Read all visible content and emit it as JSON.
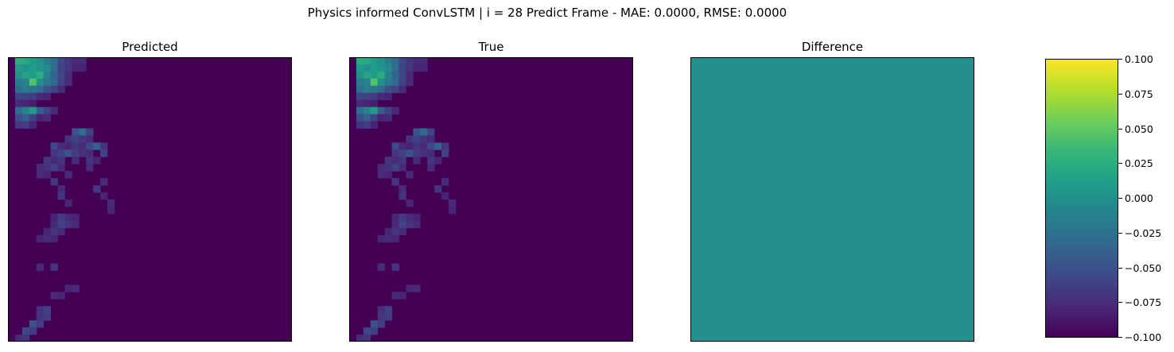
{
  "figure": {
    "title": "Physics informed ConvLSTM | i = 28 Predict Frame - MAE: 0.0000, RMSE: 0.0000"
  },
  "colormap": {
    "name": "viridis",
    "stops": [
      "#440154",
      "#482878",
      "#3e4989",
      "#31688e",
      "#26828e",
      "#1f9e89",
      "#35b779",
      "#6ece58",
      "#b5de2b",
      "#fde725"
    ]
  },
  "chart_data": [
    {
      "type": "heatmap",
      "title": "Predicted",
      "grid_size": [
        40,
        40
      ],
      "value_range": [
        0,
        1
      ],
      "cells": [
        [
          0,
          1,
          0.62
        ],
        [
          0,
          2,
          0.6
        ],
        [
          0,
          3,
          0.55
        ],
        [
          0,
          4,
          0.5
        ],
        [
          0,
          5,
          0.42
        ],
        [
          0,
          6,
          0.35
        ],
        [
          0,
          7,
          0.22
        ],
        [
          0,
          8,
          0.15
        ],
        [
          0,
          9,
          0.12
        ],
        [
          0,
          10,
          0.12
        ],
        [
          1,
          1,
          0.55
        ],
        [
          1,
          2,
          0.5
        ],
        [
          1,
          3,
          0.55
        ],
        [
          1,
          4,
          0.52
        ],
        [
          1,
          5,
          0.48
        ],
        [
          1,
          6,
          0.35
        ],
        [
          1,
          7,
          0.2
        ],
        [
          1,
          8,
          0.15
        ],
        [
          1,
          9,
          0.1
        ],
        [
          1,
          10,
          0.1
        ],
        [
          2,
          1,
          0.5
        ],
        [
          2,
          2,
          0.58
        ],
        [
          2,
          3,
          0.55
        ],
        [
          2,
          4,
          0.62
        ],
        [
          2,
          5,
          0.45
        ],
        [
          2,
          6,
          0.32
        ],
        [
          2,
          7,
          0.22
        ],
        [
          2,
          8,
          0.12
        ],
        [
          3,
          1,
          0.42
        ],
        [
          3,
          2,
          0.45
        ],
        [
          3,
          3,
          0.72
        ],
        [
          3,
          4,
          0.5
        ],
        [
          3,
          5,
          0.4
        ],
        [
          3,
          6,
          0.35
        ],
        [
          3,
          7,
          0.2
        ],
        [
          3,
          8,
          0.12
        ],
        [
          4,
          1,
          0.35
        ],
        [
          4,
          2,
          0.42
        ],
        [
          4,
          3,
          0.4
        ],
        [
          4,
          4,
          0.35
        ],
        [
          4,
          5,
          0.25
        ],
        [
          4,
          6,
          0.2
        ],
        [
          4,
          7,
          0.12
        ],
        [
          5,
          1,
          0.2
        ],
        [
          5,
          2,
          0.2
        ],
        [
          5,
          3,
          0.18
        ],
        [
          5,
          4,
          0.12
        ],
        [
          5,
          5,
          0.1
        ],
        [
          6,
          1,
          0.12
        ],
        [
          6,
          2,
          0.1
        ],
        [
          6,
          3,
          0.08
        ],
        [
          7,
          1,
          0.35
        ],
        [
          7,
          2,
          0.45
        ],
        [
          7,
          3,
          0.55
        ],
        [
          7,
          4,
          0.3
        ],
        [
          7,
          5,
          0.2
        ],
        [
          7,
          6,
          0.12
        ],
        [
          8,
          1,
          0.25
        ],
        [
          8,
          2,
          0.3
        ],
        [
          8,
          3,
          0.2
        ],
        [
          8,
          4,
          0.1
        ],
        [
          8,
          5,
          0.12
        ],
        [
          9,
          1,
          0.15
        ],
        [
          9,
          2,
          0.18
        ],
        [
          9,
          3,
          0.1
        ],
        [
          10,
          9,
          0.25
        ],
        [
          10,
          10,
          0.35
        ],
        [
          10,
          11,
          0.2
        ],
        [
          11,
          8,
          0.15
        ],
        [
          11,
          9,
          0.2
        ],
        [
          11,
          10,
          0.15
        ],
        [
          11,
          11,
          0.12
        ],
        [
          12,
          6,
          0.22
        ],
        [
          12,
          7,
          0.12
        ],
        [
          12,
          8,
          0.1
        ],
        [
          12,
          9,
          0.15
        ],
        [
          12,
          10,
          0.12
        ],
        [
          12,
          11,
          0.22
        ],
        [
          12,
          12,
          0.3
        ],
        [
          12,
          13,
          0.15
        ],
        [
          13,
          6,
          0.15
        ],
        [
          13,
          7,
          0.2
        ],
        [
          13,
          8,
          0.25
        ],
        [
          13,
          9,
          0.18
        ],
        [
          13,
          10,
          0.14
        ],
        [
          13,
          11,
          0.12
        ],
        [
          13,
          13,
          0.2
        ],
        [
          14,
          5,
          0.15
        ],
        [
          14,
          6,
          0.12
        ],
        [
          14,
          7,
          0.15
        ],
        [
          14,
          9,
          0.12
        ],
        [
          14,
          11,
          0.15
        ],
        [
          14,
          12,
          0.1
        ],
        [
          15,
          4,
          0.12
        ],
        [
          15,
          5,
          0.14
        ],
        [
          15,
          6,
          0.2
        ],
        [
          15,
          7,
          0.12
        ],
        [
          15,
          11,
          0.12
        ],
        [
          16,
          4,
          0.12
        ],
        [
          16,
          5,
          0.1
        ],
        [
          16,
          8,
          0.12
        ],
        [
          17,
          6,
          0.15
        ],
        [
          17,
          13,
          0.12
        ],
        [
          18,
          7,
          0.12
        ],
        [
          18,
          12,
          0.15
        ],
        [
          19,
          7,
          0.15
        ],
        [
          19,
          13,
          0.1
        ],
        [
          20,
          8,
          0.1
        ],
        [
          20,
          14,
          0.12
        ],
        [
          21,
          14,
          0.1
        ],
        [
          22,
          6,
          0.1
        ],
        [
          22,
          7,
          0.18
        ],
        [
          22,
          8,
          0.12
        ],
        [
          22,
          9,
          0.1
        ],
        [
          23,
          6,
          0.12
        ],
        [
          23,
          7,
          0.2
        ],
        [
          23,
          8,
          0.15
        ],
        [
          23,
          9,
          0.12
        ],
        [
          24,
          5,
          0.1
        ],
        [
          24,
          6,
          0.15
        ],
        [
          24,
          7,
          0.12
        ],
        [
          25,
          4,
          0.1
        ],
        [
          25,
          5,
          0.12
        ],
        [
          25,
          6,
          0.1
        ],
        [
          29,
          4,
          0.12
        ],
        [
          29,
          6,
          0.15
        ],
        [
          32,
          8,
          0.1
        ],
        [
          32,
          9,
          0.12
        ],
        [
          33,
          6,
          0.12
        ],
        [
          33,
          7,
          0.1
        ],
        [
          35,
          4,
          0.14
        ],
        [
          35,
          5,
          0.2
        ],
        [
          36,
          4,
          0.15
        ],
        [
          36,
          5,
          0.18
        ],
        [
          37,
          3,
          0.25
        ],
        [
          37,
          4,
          0.18
        ],
        [
          38,
          2,
          0.22
        ],
        [
          38,
          3,
          0.18
        ],
        [
          39,
          1,
          0.12
        ],
        [
          39,
          2,
          0.15
        ]
      ]
    },
    {
      "type": "heatmap",
      "title": "True",
      "grid_size": [
        40,
        40
      ],
      "value_range": [
        0,
        1
      ],
      "cells": [
        [
          0,
          1,
          0.62
        ],
        [
          0,
          2,
          0.6
        ],
        [
          0,
          3,
          0.55
        ],
        [
          0,
          4,
          0.5
        ],
        [
          0,
          5,
          0.42
        ],
        [
          0,
          6,
          0.35
        ],
        [
          0,
          7,
          0.22
        ],
        [
          0,
          8,
          0.15
        ],
        [
          0,
          9,
          0.12
        ],
        [
          0,
          10,
          0.12
        ],
        [
          1,
          1,
          0.55
        ],
        [
          1,
          2,
          0.5
        ],
        [
          1,
          3,
          0.55
        ],
        [
          1,
          4,
          0.52
        ],
        [
          1,
          5,
          0.48
        ],
        [
          1,
          6,
          0.35
        ],
        [
          1,
          7,
          0.2
        ],
        [
          1,
          8,
          0.15
        ],
        [
          1,
          9,
          0.1
        ],
        [
          1,
          10,
          0.1
        ],
        [
          2,
          1,
          0.5
        ],
        [
          2,
          2,
          0.58
        ],
        [
          2,
          3,
          0.55
        ],
        [
          2,
          4,
          0.62
        ],
        [
          2,
          5,
          0.45
        ],
        [
          2,
          6,
          0.32
        ],
        [
          2,
          7,
          0.22
        ],
        [
          2,
          8,
          0.12
        ],
        [
          3,
          1,
          0.42
        ],
        [
          3,
          2,
          0.45
        ],
        [
          3,
          3,
          0.72
        ],
        [
          3,
          4,
          0.5
        ],
        [
          3,
          5,
          0.4
        ],
        [
          3,
          6,
          0.35
        ],
        [
          3,
          7,
          0.2
        ],
        [
          3,
          8,
          0.12
        ],
        [
          4,
          1,
          0.35
        ],
        [
          4,
          2,
          0.42
        ],
        [
          4,
          3,
          0.4
        ],
        [
          4,
          4,
          0.35
        ],
        [
          4,
          5,
          0.25
        ],
        [
          4,
          6,
          0.2
        ],
        [
          4,
          7,
          0.12
        ],
        [
          5,
          1,
          0.2
        ],
        [
          5,
          2,
          0.2
        ],
        [
          5,
          3,
          0.18
        ],
        [
          5,
          4,
          0.12
        ],
        [
          5,
          5,
          0.1
        ],
        [
          6,
          1,
          0.12
        ],
        [
          6,
          2,
          0.1
        ],
        [
          6,
          3,
          0.08
        ],
        [
          7,
          1,
          0.35
        ],
        [
          7,
          2,
          0.45
        ],
        [
          7,
          3,
          0.55
        ],
        [
          7,
          4,
          0.3
        ],
        [
          7,
          5,
          0.2
        ],
        [
          7,
          6,
          0.12
        ],
        [
          8,
          1,
          0.25
        ],
        [
          8,
          2,
          0.3
        ],
        [
          8,
          3,
          0.2
        ],
        [
          8,
          4,
          0.1
        ],
        [
          8,
          5,
          0.12
        ],
        [
          9,
          1,
          0.15
        ],
        [
          9,
          2,
          0.18
        ],
        [
          9,
          3,
          0.1
        ],
        [
          10,
          9,
          0.25
        ],
        [
          10,
          10,
          0.35
        ],
        [
          10,
          11,
          0.2
        ],
        [
          11,
          8,
          0.15
        ],
        [
          11,
          9,
          0.2
        ],
        [
          11,
          10,
          0.15
        ],
        [
          11,
          11,
          0.12
        ],
        [
          12,
          6,
          0.22
        ],
        [
          12,
          7,
          0.12
        ],
        [
          12,
          8,
          0.1
        ],
        [
          12,
          9,
          0.15
        ],
        [
          12,
          10,
          0.12
        ],
        [
          12,
          11,
          0.22
        ],
        [
          12,
          12,
          0.3
        ],
        [
          12,
          13,
          0.15
        ],
        [
          13,
          6,
          0.15
        ],
        [
          13,
          7,
          0.2
        ],
        [
          13,
          8,
          0.25
        ],
        [
          13,
          9,
          0.18
        ],
        [
          13,
          10,
          0.14
        ],
        [
          13,
          11,
          0.12
        ],
        [
          13,
          13,
          0.2
        ],
        [
          14,
          5,
          0.15
        ],
        [
          14,
          6,
          0.12
        ],
        [
          14,
          7,
          0.15
        ],
        [
          14,
          9,
          0.12
        ],
        [
          14,
          11,
          0.15
        ],
        [
          14,
          12,
          0.1
        ],
        [
          15,
          4,
          0.12
        ],
        [
          15,
          5,
          0.14
        ],
        [
          15,
          6,
          0.2
        ],
        [
          15,
          7,
          0.12
        ],
        [
          15,
          11,
          0.12
        ],
        [
          16,
          4,
          0.12
        ],
        [
          16,
          5,
          0.1
        ],
        [
          16,
          8,
          0.12
        ],
        [
          17,
          6,
          0.15
        ],
        [
          17,
          13,
          0.12
        ],
        [
          18,
          7,
          0.12
        ],
        [
          18,
          12,
          0.15
        ],
        [
          19,
          7,
          0.15
        ],
        [
          19,
          13,
          0.1
        ],
        [
          20,
          8,
          0.1
        ],
        [
          20,
          14,
          0.12
        ],
        [
          21,
          14,
          0.1
        ],
        [
          22,
          6,
          0.1
        ],
        [
          22,
          7,
          0.18
        ],
        [
          22,
          8,
          0.12
        ],
        [
          22,
          9,
          0.1
        ],
        [
          23,
          6,
          0.12
        ],
        [
          23,
          7,
          0.2
        ],
        [
          23,
          8,
          0.15
        ],
        [
          23,
          9,
          0.12
        ],
        [
          24,
          5,
          0.1
        ],
        [
          24,
          6,
          0.15
        ],
        [
          24,
          7,
          0.12
        ],
        [
          25,
          4,
          0.1
        ],
        [
          25,
          5,
          0.12
        ],
        [
          25,
          6,
          0.1
        ],
        [
          29,
          4,
          0.12
        ],
        [
          29,
          6,
          0.15
        ],
        [
          32,
          8,
          0.1
        ],
        [
          32,
          9,
          0.12
        ],
        [
          33,
          6,
          0.12
        ],
        [
          33,
          7,
          0.1
        ],
        [
          35,
          4,
          0.14
        ],
        [
          35,
          5,
          0.2
        ],
        [
          36,
          4,
          0.15
        ],
        [
          36,
          5,
          0.18
        ],
        [
          37,
          3,
          0.25
        ],
        [
          37,
          4,
          0.18
        ],
        [
          38,
          2,
          0.22
        ],
        [
          38,
          3,
          0.18
        ],
        [
          39,
          1,
          0.12
        ],
        [
          39,
          2,
          0.15
        ]
      ]
    },
    {
      "type": "heatmap",
      "title": "Difference",
      "grid_size": [
        40,
        40
      ],
      "value_range": [
        -0.1,
        0.1
      ],
      "uniform_value": 0.0,
      "colorbar": {
        "range": [
          -0.1,
          0.1
        ],
        "ticks": [
          -0.1,
          -0.075,
          -0.05,
          -0.025,
          0.0,
          0.025,
          0.05,
          0.075,
          0.1
        ],
        "tick_labels": [
          "−0.100",
          "−0.075",
          "−0.050",
          "−0.025",
          "0.000",
          "0.025",
          "0.050",
          "0.075",
          "0.100"
        ]
      }
    }
  ]
}
